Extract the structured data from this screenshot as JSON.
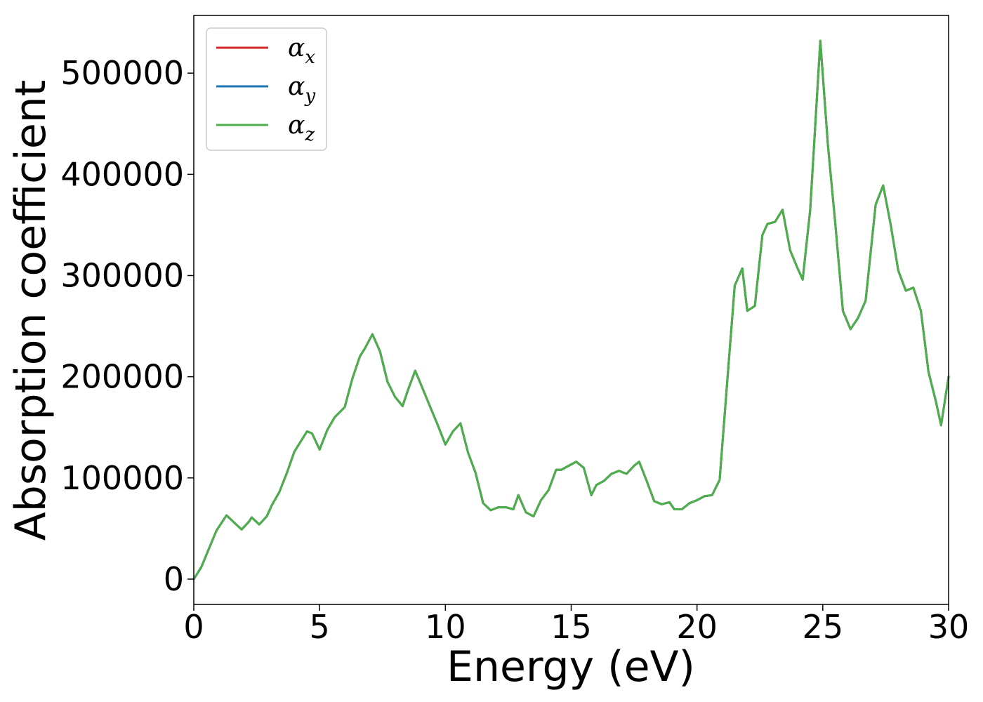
{
  "chart_data": {
    "type": "line",
    "xlabel": "Energy (eV)",
    "ylabel": "Absorption coefficient",
    "xlim": [
      0,
      30
    ],
    "ylim": [
      -25000,
      557000
    ],
    "xticks": [
      0,
      5,
      10,
      15,
      20,
      25,
      30
    ],
    "xtick_labels": [
      "0",
      "5",
      "10",
      "15",
      "20",
      "25",
      "30"
    ],
    "yticks": [
      0,
      100000,
      200000,
      300000,
      400000,
      500000
    ],
    "ytick_labels": [
      "0",
      "100000",
      "200000",
      "300000",
      "400000",
      "500000"
    ],
    "grid": false,
    "legend_position": "top-left",
    "x": [
      0,
      0.3,
      0.6,
      0.9,
      1.3,
      1.6,
      1.9,
      2.2,
      2.3,
      2.6,
      2.9,
      3.1,
      3.4,
      3.7,
      4.0,
      4.3,
      4.5,
      4.7,
      5.0,
      5.3,
      5.6,
      6.0,
      6.3,
      6.6,
      6.8,
      7.1,
      7.4,
      7.7,
      8.0,
      8.3,
      8.5,
      8.8,
      9.1,
      9.4,
      9.7,
      10.0,
      10.3,
      10.6,
      10.9,
      11.2,
      11.5,
      11.8,
      12.1,
      12.4,
      12.7,
      12.9,
      13.2,
      13.5,
      13.8,
      14.1,
      14.4,
      14.6,
      14.9,
      15.2,
      15.5,
      15.8,
      16.0,
      16.3,
      16.6,
      16.9,
      17.2,
      17.5,
      17.7,
      18.0,
      18.3,
      18.6,
      18.9,
      19.1,
      19.4,
      19.7,
      20.0,
      20.3,
      20.6,
      20.9,
      21.2,
      21.5,
      21.8,
      22.0,
      22.3,
      22.6,
      22.8,
      23.1,
      23.4,
      23.7,
      24.0,
      24.2,
      24.5,
      24.9,
      25.2,
      25.5,
      25.8,
      26.1,
      26.4,
      26.7,
      27.1,
      27.4,
      27.7,
      28.0,
      28.3,
      28.6,
      28.9,
      29.2,
      29.5,
      29.7,
      30.0
    ],
    "series": [
      {
        "name": "α_x",
        "color": "#d62728",
        "values": [
          0,
          12000,
          30000,
          48000,
          63000,
          56000,
          49000,
          57000,
          61000,
          54000,
          62000,
          73000,
          86000,
          105000,
          126000,
          138000,
          146000,
          144000,
          128000,
          147000,
          160000,
          170000,
          198000,
          220000,
          228000,
          242000,
          225000,
          195000,
          180000,
          171000,
          186000,
          206000,
          188000,
          170000,
          152000,
          133000,
          146000,
          154000,
          125000,
          105000,
          75000,
          68000,
          71000,
          71000,
          69000,
          83000,
          66000,
          62000,
          78000,
          88000,
          108000,
          108000,
          112000,
          116000,
          110000,
          83000,
          93000,
          97000,
          104000,
          107000,
          104000,
          112000,
          116000,
          97000,
          77000,
          74000,
          76000,
          69000,
          69000,
          75000,
          78000,
          82000,
          83000,
          98000,
          195000,
          290000,
          307000,
          265000,
          270000,
          340000,
          351000,
          353000,
          365000,
          325000,
          307000,
          296000,
          365000,
          532000,
          430000,
          350000,
          265000,
          247000,
          258000,
          275000,
          370000,
          389000,
          350000,
          305000,
          285000,
          288000,
          265000,
          205000,
          175000,
          152000,
          200000
        ]
      },
      {
        "name": "α_y",
        "color": "#1f77b4",
        "values": [
          0,
          12000,
          30000,
          48000,
          63000,
          56000,
          49000,
          57000,
          61000,
          54000,
          62000,
          73000,
          86000,
          105000,
          126000,
          138000,
          146000,
          144000,
          128000,
          147000,
          160000,
          170000,
          198000,
          220000,
          228000,
          242000,
          225000,
          195000,
          180000,
          171000,
          186000,
          206000,
          188000,
          170000,
          152000,
          133000,
          146000,
          154000,
          125000,
          105000,
          75000,
          68000,
          71000,
          71000,
          69000,
          83000,
          66000,
          62000,
          78000,
          88000,
          108000,
          108000,
          112000,
          116000,
          110000,
          83000,
          93000,
          97000,
          104000,
          107000,
          104000,
          112000,
          116000,
          97000,
          77000,
          74000,
          76000,
          69000,
          69000,
          75000,
          78000,
          82000,
          83000,
          98000,
          195000,
          290000,
          307000,
          265000,
          270000,
          340000,
          351000,
          353000,
          365000,
          325000,
          307000,
          296000,
          365000,
          532000,
          430000,
          350000,
          265000,
          247000,
          258000,
          275000,
          370000,
          389000,
          350000,
          305000,
          285000,
          288000,
          265000,
          205000,
          175000,
          152000,
          200000
        ]
      },
      {
        "name": "α_z",
        "color": "#4daf4a",
        "values": [
          0,
          12000,
          30000,
          48000,
          63000,
          56000,
          49000,
          57000,
          61000,
          54000,
          62000,
          73000,
          86000,
          105000,
          126000,
          138000,
          146000,
          144000,
          128000,
          147000,
          160000,
          170000,
          198000,
          220000,
          228000,
          242000,
          225000,
          195000,
          180000,
          171000,
          186000,
          206000,
          188000,
          170000,
          152000,
          133000,
          146000,
          154000,
          125000,
          105000,
          75000,
          68000,
          71000,
          71000,
          69000,
          83000,
          66000,
          62000,
          78000,
          88000,
          108000,
          108000,
          112000,
          116000,
          110000,
          83000,
          93000,
          97000,
          104000,
          107000,
          104000,
          112000,
          116000,
          97000,
          77000,
          74000,
          76000,
          69000,
          69000,
          75000,
          78000,
          82000,
          83000,
          98000,
          195000,
          290000,
          307000,
          265000,
          270000,
          340000,
          351000,
          353000,
          365000,
          325000,
          307000,
          296000,
          365000,
          532000,
          430000,
          350000,
          265000,
          247000,
          258000,
          275000,
          370000,
          389000,
          350000,
          305000,
          285000,
          288000,
          265000,
          205000,
          175000,
          152000,
          200000
        ]
      }
    ],
    "legend": [
      {
        "symbol": "α",
        "sub": "x",
        "color": "#d62728"
      },
      {
        "symbol": "α",
        "sub": "y",
        "color": "#1f77b4"
      },
      {
        "symbol": "α",
        "sub": "z",
        "color": "#4daf4a"
      }
    ]
  }
}
